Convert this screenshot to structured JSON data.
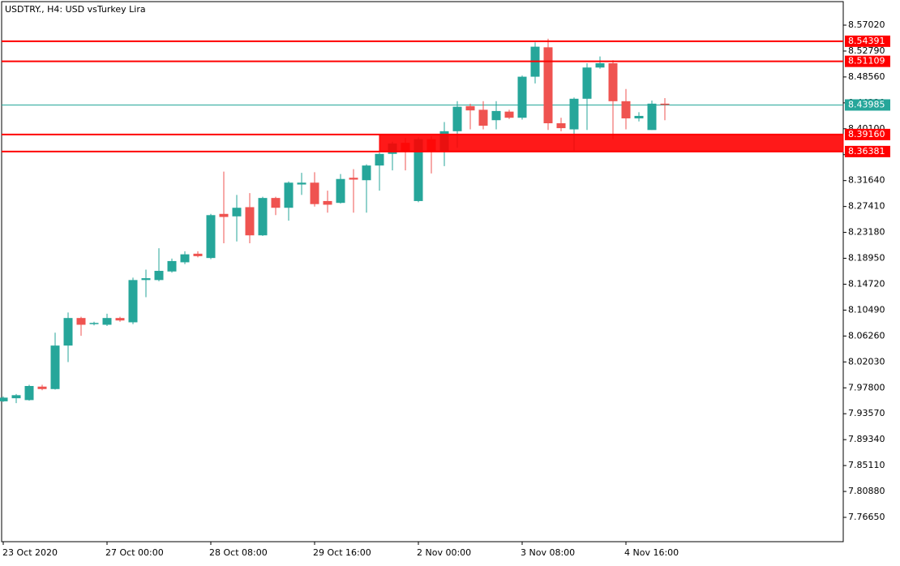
{
  "chart_data": {
    "type": "candlestick",
    "title": "USDTRY., H4:  USD vsTurkey Lira",
    "categories": [
      "23 Oct 2020",
      null,
      null,
      null,
      null,
      null,
      null,
      null,
      "27 Oct 00:00",
      null,
      null,
      null,
      null,
      null,
      null,
      null,
      "28 Oct 08:00",
      null,
      null,
      null,
      null,
      null,
      null,
      null,
      "29 Oct 16:00",
      null,
      null,
      null,
      null,
      null,
      null,
      null,
      "2 Nov 00:00",
      null,
      null,
      null,
      null,
      null,
      null,
      null,
      "3 Nov 08:00",
      null,
      null,
      null,
      null,
      null,
      null,
      null,
      "4 Nov 16:00",
      null,
      null,
      null
    ],
    "open": [
      7.956,
      7.961,
      7.958,
      7.98,
      7.976,
      8.047,
      8.092,
      8.082,
      8.081,
      8.092,
      8.085,
      8.154,
      8.154,
      8.168,
      8.183,
      8.197,
      8.19,
      8.262,
      8.258,
      8.273,
      8.227,
      8.288,
      8.272,
      8.31,
      8.313,
      8.283,
      8.28,
      8.321,
      8.317,
      8.341,
      8.36,
      8.378,
      8.283,
      8.384,
      8.363,
      8.397,
      8.438,
      8.432,
      8.415,
      8.429,
      8.419,
      8.486,
      8.534,
      8.41,
      8.4,
      8.45,
      8.501,
      8.508,
      8.446,
      8.418,
      8.399,
      8.442
    ],
    "high": [
      7.964,
      7.968,
      7.983,
      7.983,
      8.068,
      8.101,
      8.094,
      8.086,
      8.099,
      8.094,
      8.158,
      8.171,
      8.206,
      8.189,
      8.201,
      8.201,
      8.262,
      8.331,
      8.293,
      8.296,
      8.29,
      8.29,
      8.315,
      8.329,
      8.33,
      8.3,
      8.327,
      8.335,
      8.343,
      8.362,
      8.38,
      8.386,
      8.387,
      8.389,
      8.412,
      8.446,
      8.442,
      8.446,
      8.446,
      8.432,
      8.488,
      8.542,
      8.548,
      8.419,
      8.452,
      8.508,
      8.519,
      8.513,
      8.466,
      8.428,
      8.447,
      8.451
    ],
    "low": [
      7.955,
      7.953,
      7.957,
      7.974,
      7.975,
      8.02,
      8.063,
      8.08,
      8.079,
      8.086,
      8.082,
      8.126,
      8.152,
      8.166,
      8.18,
      8.191,
      8.188,
      8.214,
      8.217,
      8.214,
      8.226,
      8.26,
      8.251,
      8.293,
      8.274,
      8.264,
      8.279,
      8.264,
      8.264,
      8.3,
      8.333,
      8.333,
      8.281,
      8.328,
      8.34,
      8.37,
      8.4,
      8.4,
      8.4,
      8.417,
      8.416,
      8.475,
      8.399,
      8.397,
      8.364,
      8.399,
      8.499,
      8.384,
      8.4,
      8.413,
      8.399,
      8.415
    ],
    "close": [
      7.962,
      7.966,
      7.981,
      7.976,
      8.047,
      8.092,
      8.081,
      8.084,
      8.092,
      8.088,
      8.154,
      8.157,
      8.169,
      8.185,
      8.196,
      8.193,
      8.26,
      8.257,
      8.272,
      8.227,
      8.288,
      8.272,
      8.313,
      8.313,
      8.278,
      8.277,
      8.319,
      8.318,
      8.341,
      8.36,
      8.377,
      8.364,
      8.384,
      8.363,
      8.397,
      8.437,
      8.431,
      8.406,
      8.43,
      8.419,
      8.486,
      8.535,
      8.41,
      8.402,
      8.45,
      8.501,
      8.508,
      8.446,
      8.418,
      8.422,
      8.442,
      8.44
    ],
    "up_color": "#26a69a",
    "down_color": "#ef5350",
    "ylim": [
      7.7268,
      8.6086
    ],
    "yticks": [
      {
        "value": 8.5702,
        "label": "8.57020"
      },
      {
        "value": 8.5279,
        "label": "8.52790"
      },
      {
        "value": 8.4856,
        "label": "8.48560"
      },
      {
        "value": 8.4433,
        "label": "8.44330"
      },
      {
        "value": 8.401,
        "label": "8.40100"
      },
      {
        "value": 8.3587,
        "label": "8.35870"
      },
      {
        "value": 8.3164,
        "label": "8.31640"
      },
      {
        "value": 8.2741,
        "label": "8.27410"
      },
      {
        "value": 8.2318,
        "label": "8.23180"
      },
      {
        "value": 8.1895,
        "label": "8.18950"
      },
      {
        "value": 8.1472,
        "label": "8.14720"
      },
      {
        "value": 8.1049,
        "label": "8.10490"
      },
      {
        "value": 8.0626,
        "label": "8.06260"
      },
      {
        "value": 8.0203,
        "label": "8.02030"
      },
      {
        "value": 7.978,
        "label": "7.97800"
      },
      {
        "value": 7.9357,
        "label": "7.93570"
      },
      {
        "value": 7.8934,
        "label": "7.89340"
      },
      {
        "value": 7.8511,
        "label": "7.85110"
      },
      {
        "value": 7.8088,
        "label": "7.80880"
      },
      {
        "value": 7.7665,
        "label": "7.76650"
      }
    ],
    "levels": [
      8.54391,
      8.51109,
      {
        "value": 8.3916,
        "label": "8.39160"
      },
      8.36381
    ],
    "level_color": "#ff0000",
    "current_price": 8.43985,
    "current_color": "#26a69a",
    "zone": [
      {
        "value": 8.3916,
        "label": "8.39160"
      },
      8.36381
    ]
  }
}
